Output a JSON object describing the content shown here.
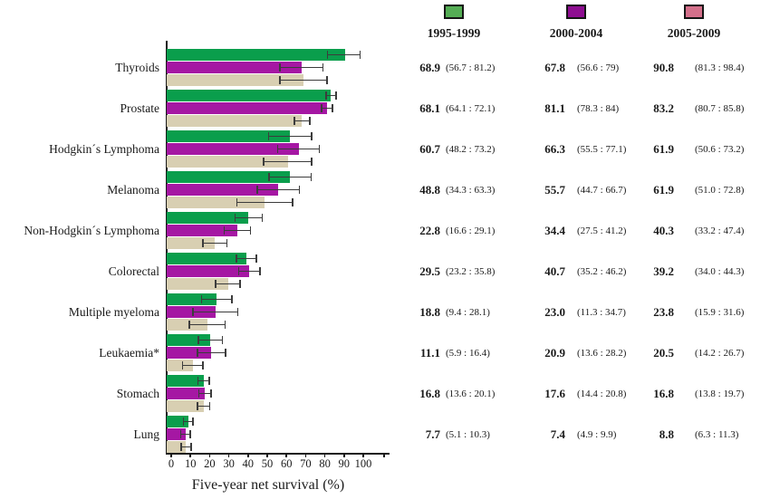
{
  "chart_data": {
    "type": "bar",
    "orientation": "horizontal",
    "title": "",
    "xlabel": "Five-year net survival (%)",
    "ylabel": "",
    "xlim": [
      0,
      100
    ],
    "xticks": [
      0,
      10,
      20,
      30,
      40,
      50,
      60,
      70,
      80,
      90,
      100
    ],
    "grid": false,
    "categories": [
      "Thyroids",
      "Prostate",
      "Hodgkin´s Lymphoma",
      "Melanoma",
      "Non-Hodgkin´s Lymphoma",
      "Colorectal",
      "Multiple myeloma",
      "Leukaemia*",
      "Stomach",
      "Lung"
    ],
    "series": [
      {
        "name": "2005-2009",
        "color": "#0a9e4c",
        "values": [
          90.8,
          83.2,
          61.9,
          61.9,
          40.3,
          39.2,
          23.8,
          20.5,
          16.8,
          8.8
        ],
        "ci_low": [
          81.3,
          80.7,
          50.6,
          51.0,
          33.2,
          34.0,
          15.9,
          14.2,
          13.8,
          6.3
        ],
        "ci_high": [
          98.4,
          85.8,
          73.2,
          72.8,
          47.4,
          44.3,
          31.6,
          26.7,
          19.7,
          11.3
        ]
      },
      {
        "name": "2000-2004",
        "color": "#a517a3",
        "values": [
          67.8,
          81.1,
          66.3,
          55.7,
          34.4,
          40.7,
          23.0,
          20.9,
          17.6,
          7.4
        ],
        "ci_low": [
          56.6,
          78.3,
          55.5,
          44.7,
          27.5,
          35.2,
          11.3,
          13.6,
          14.4,
          4.9
        ],
        "ci_high": [
          79.0,
          84.0,
          77.1,
          66.7,
          41.2,
          46.2,
          34.7,
          28.2,
          20.8,
          9.9
        ]
      },
      {
        "name": "1995-1999",
        "color": "#d8cfb2",
        "values": [
          68.9,
          68.1,
          60.7,
          48.8,
          22.8,
          29.5,
          18.8,
          11.1,
          16.8,
          7.7
        ],
        "ci_low": [
          56.7,
          64.1,
          48.2,
          34.3,
          16.6,
          23.2,
          9.4,
          5.9,
          13.6,
          5.1
        ],
        "ci_high": [
          81.2,
          72.1,
          73.2,
          63.3,
          29.1,
          35.8,
          28.1,
          16.4,
          20.1,
          10.3
        ]
      }
    ],
    "error_bar_color": "#3c3c3c"
  },
  "table": {
    "header": [
      {
        "period": "1995-1999",
        "swatch": "#55ad55"
      },
      {
        "period": "2000-2004",
        "swatch": "#8e0e91"
      },
      {
        "period": "2005-2009",
        "swatch": "#d4708b"
      }
    ],
    "rows": [
      {
        "category": "Thyroids",
        "cols": [
          {
            "value": "68.9",
            "ci": "(56.7 : 81.2)"
          },
          {
            "value": "67.8",
            "ci": "(56.6 : 79)"
          },
          {
            "value": "90.8",
            "ci": "(81.3 : 98.4)"
          }
        ]
      },
      {
        "category": "Prostate",
        "cols": [
          {
            "value": "68.1",
            "ci": "(64.1 : 72.1)"
          },
          {
            "value": "81.1",
            "ci": "(78.3 : 84)"
          },
          {
            "value": "83.2",
            "ci": "(80.7 : 85.8)"
          }
        ]
      },
      {
        "category": "Hodgkin´s Lymphoma",
        "cols": [
          {
            "value": "60.7",
            "ci": "(48.2 : 73.2)"
          },
          {
            "value": "66.3",
            "ci": "(55.5 : 77.1)"
          },
          {
            "value": "61.9",
            "ci": "(50.6 : 73.2)"
          }
        ]
      },
      {
        "category": "Melanoma",
        "cols": [
          {
            "value": "48.8",
            "ci": "(34.3 : 63.3)"
          },
          {
            "value": "55.7",
            "ci": "(44.7 : 66.7)"
          },
          {
            "value": "61.9",
            "ci": "(51.0 : 72.8)"
          }
        ]
      },
      {
        "category": "Non-Hodgkin´s Lymphoma",
        "cols": [
          {
            "value": "22.8",
            "ci": "(16.6 : 29.1)"
          },
          {
            "value": "34.4",
            "ci": "(27.5 : 41.2)"
          },
          {
            "value": "40.3",
            "ci": "(33.2 : 47.4)"
          }
        ]
      },
      {
        "category": "Colorectal",
        "cols": [
          {
            "value": "29.5",
            "ci": "(23.2 : 35.8)"
          },
          {
            "value": "40.7",
            "ci": "(35.2 : 46.2)"
          },
          {
            "value": "39.2",
            "ci": "(34.0 : 44.3)"
          }
        ]
      },
      {
        "category": "Multiple myeloma",
        "cols": [
          {
            "value": "18.8",
            "ci": "(9.4 : 28.1)"
          },
          {
            "value": "23.0",
            "ci": "(11.3 : 34.7)"
          },
          {
            "value": "23.8",
            "ci": "(15.9 : 31.6)"
          }
        ]
      },
      {
        "category": "Leukaemia*",
        "cols": [
          {
            "value": "11.1",
            "ci": "(5.9 : 16.4)"
          },
          {
            "value": "20.9",
            "ci": "(13.6 : 28.2)"
          },
          {
            "value": "20.5",
            "ci": "(14.2 : 26.7)"
          }
        ]
      },
      {
        "category": "Stomach",
        "cols": [
          {
            "value": "16.8",
            "ci": "(13.6 : 20.1)"
          },
          {
            "value": "17.6",
            "ci": "(14.4 : 20.8)"
          },
          {
            "value": "16.8",
            "ci": "(13.8 : 19.7)"
          }
        ]
      },
      {
        "category": "Lung",
        "cols": [
          {
            "value": "7.7",
            "ci": "(5.1 : 10.3)"
          },
          {
            "value": "7.4",
            "ci": "(4.9 : 9.9)"
          },
          {
            "value": "8.8",
            "ci": "(6.3 : 11.3)"
          }
        ]
      }
    ]
  }
}
